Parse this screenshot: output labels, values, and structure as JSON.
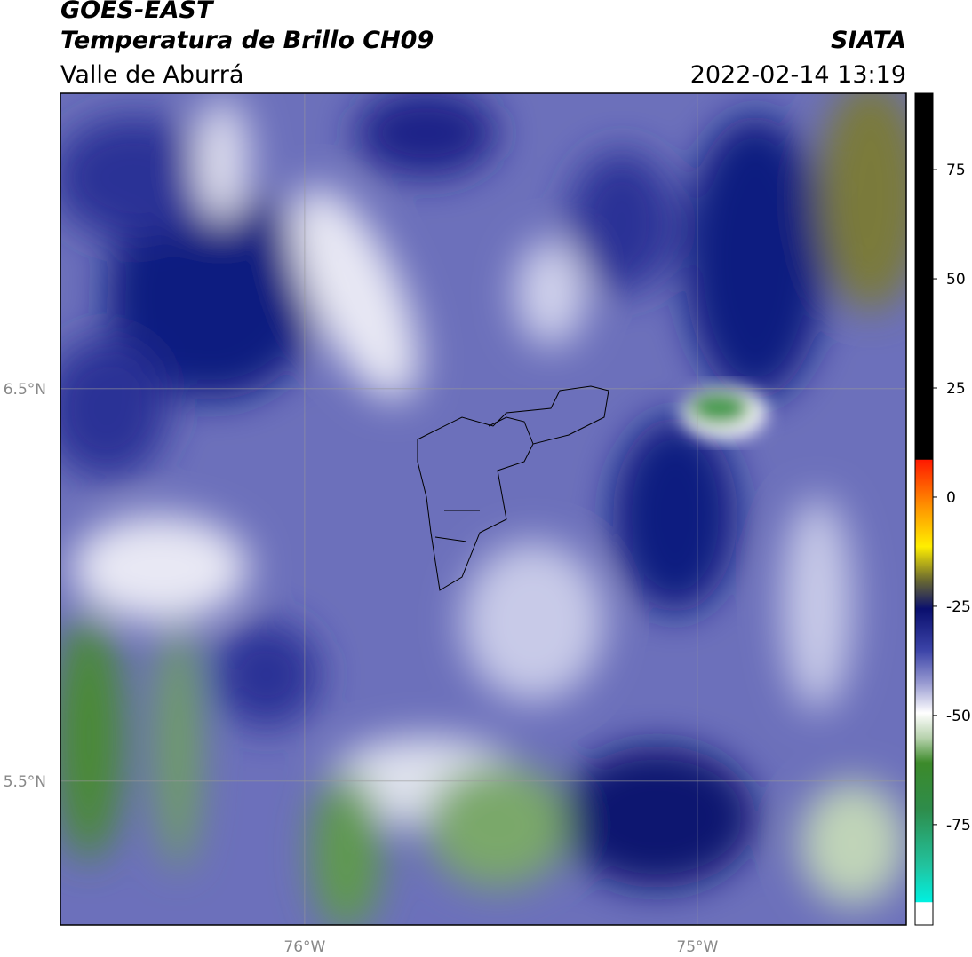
{
  "header": {
    "title": "GOES-EAST",
    "subtitle": "Temperatura de Brillo CH09",
    "source": "SIATA",
    "region": "Valle de Aburrá",
    "datetime": "2022-02-14 13:19"
  },
  "map": {
    "xlim": [
      -76.622,
      -74.468
    ],
    "ylim": [
      5.133,
      7.253
    ],
    "xticks": [
      {
        "value": -76,
        "label": "76°W"
      },
      {
        "value": -75,
        "label": "75°W"
      }
    ],
    "yticks": [
      {
        "value": 6.5,
        "label": "6.5°N"
      },
      {
        "value": 5.5,
        "label": "5.5°N"
      }
    ],
    "grid": true
  },
  "colorbar": {
    "lim": [
      -98,
      92.5
    ],
    "ticks": [
      75,
      50,
      25,
      0,
      -25,
      -50,
      -75
    ]
  }
}
